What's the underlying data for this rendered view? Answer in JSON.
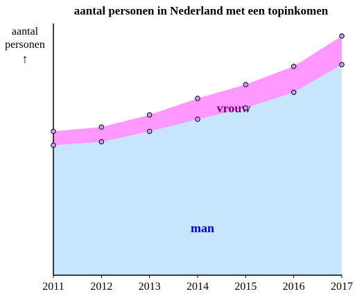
{
  "chart_data": {
    "type": "area",
    "stacked": true,
    "title": "aantal personen in Nederland met een topinkomen",
    "ylabel_line1": "aantal",
    "ylabel_line2": "personen",
    "ylabel_arrow": "↑",
    "xlabel": "",
    "x": [
      2011,
      2012,
      2013,
      2014,
      2015,
      2016,
      2017
    ],
    "y_axis_labels": false,
    "ylim": [
      0,
      280
    ],
    "grid": false,
    "series": [
      {
        "name": "man",
        "values": [
          150,
          154,
          166,
          180,
          193,
          211,
          243
        ],
        "color": "#c7e5fc",
        "label_color": "#0000cc"
      },
      {
        "name": "vrouw",
        "values": [
          16,
          17,
          19,
          24,
          27,
          30,
          33
        ],
        "color": "#ff99ff",
        "label_color": "#800080"
      }
    ],
    "marker_fill": "#cc99ff",
    "marker_stroke": "#000000"
  }
}
